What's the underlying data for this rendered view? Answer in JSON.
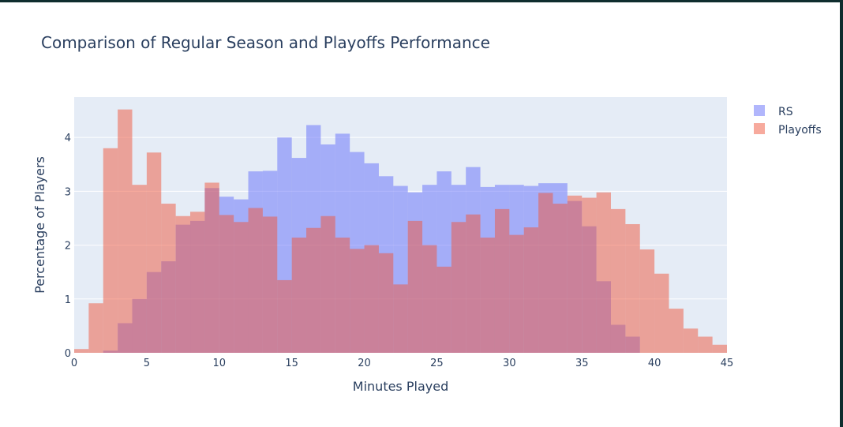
{
  "chart_data": {
    "type": "histogram",
    "title": "Comparison of Regular Season and Playoffs Performance",
    "xlabel": "Minutes Played",
    "ylabel": "Percentage of Players",
    "xlim": [
      0,
      45
    ],
    "ylim": [
      0,
      4.75
    ],
    "xticks": [
      0,
      5,
      10,
      15,
      20,
      25,
      30,
      35,
      40,
      45
    ],
    "yticks": [
      0,
      1,
      2,
      3,
      4
    ],
    "bin_size": 1,
    "bin_starts": [
      0,
      1,
      2,
      3,
      4,
      5,
      6,
      7,
      8,
      9,
      10,
      11,
      12,
      13,
      14,
      15,
      16,
      17,
      18,
      19,
      20,
      21,
      22,
      23,
      24,
      25,
      26,
      27,
      28,
      29,
      30,
      31,
      32,
      33,
      34,
      35,
      36,
      37,
      38,
      39,
      40,
      41,
      42,
      43,
      44
    ],
    "grid": true,
    "legend_position": "top-right",
    "series": [
      {
        "name": "RS",
        "color": "#636efa",
        "opacity": 0.5,
        "values": [
          0,
          0,
          0.04,
          0.55,
          1.0,
          1.5,
          1.7,
          2.38,
          2.45,
          3.06,
          2.9,
          2.85,
          3.37,
          3.38,
          4.0,
          3.62,
          4.23,
          3.87,
          4.07,
          3.73,
          3.52,
          3.28,
          3.1,
          2.98,
          3.12,
          3.37,
          3.12,
          3.45,
          3.08,
          3.12,
          3.12,
          3.1,
          3.15,
          3.15,
          2.82,
          2.35,
          1.33,
          0.52,
          0.3,
          0,
          0,
          0,
          0,
          0,
          0
        ]
      },
      {
        "name": "Playoffs",
        "color": "#ef553b",
        "opacity": 0.5,
        "values": [
          0.07,
          0.92,
          3.8,
          4.52,
          3.12,
          3.72,
          2.77,
          2.54,
          2.62,
          3.16,
          2.56,
          2.43,
          2.69,
          2.53,
          1.35,
          2.14,
          2.32,
          2.54,
          2.14,
          1.93,
          2.0,
          1.85,
          1.27,
          2.45,
          2.0,
          1.6,
          2.43,
          2.57,
          2.14,
          2.67,
          2.19,
          2.33,
          2.97,
          2.77,
          2.92,
          2.88,
          2.98,
          2.67,
          2.39,
          1.92,
          1.47,
          0.82,
          0.45,
          0.3,
          0.15
        ]
      }
    ]
  }
}
